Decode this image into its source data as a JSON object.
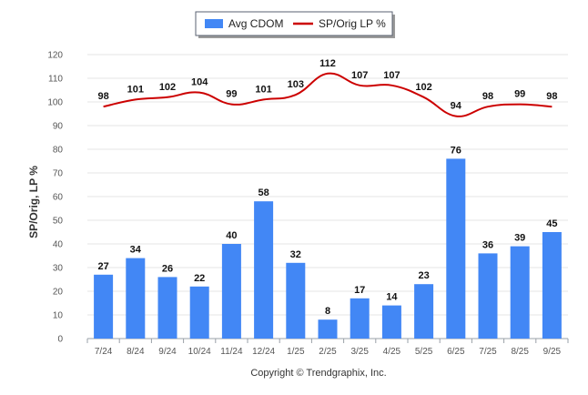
{
  "chart_data": {
    "type": "bar",
    "categories": [
      "7/24",
      "8/24",
      "9/24",
      "10/24",
      "11/24",
      "12/24",
      "1/25",
      "2/25",
      "3/25",
      "4/25",
      "5/25",
      "6/25",
      "7/25",
      "8/25",
      "9/25"
    ],
    "series": [
      {
        "name": "Avg CDOM",
        "type": "bar",
        "color": "#4287f5",
        "values": [
          27,
          34,
          26,
          22,
          40,
          58,
          32,
          8,
          17,
          14,
          23,
          76,
          36,
          39,
          45
        ],
        "labels": [
          "27",
          "34",
          "26",
          "22",
          "40",
          "58",
          "32",
          "8",
          "17",
          "14",
          "23",
          "76",
          "36",
          "39",
          "45"
        ]
      },
      {
        "name": "SP/Orig LP %",
        "type": "line",
        "color": "#cc0000",
        "values": [
          98,
          101,
          102,
          104,
          99,
          101,
          103,
          112,
          107,
          107,
          102,
          94,
          98,
          99,
          98
        ],
        "labels": [
          "98",
          "101",
          "102",
          "104",
          "99",
          "101",
          "103",
          "112",
          "107",
          "107",
          "102",
          "94",
          "98",
          "99",
          "98"
        ]
      }
    ],
    "ylabel": "SP/Orig, LP %",
    "xlabel": "",
    "ylim": [
      0,
      120
    ],
    "yticks": [
      "0",
      "10",
      "20",
      "30",
      "40",
      "50",
      "60",
      "70",
      "80",
      "90",
      "100",
      "110",
      "120"
    ],
    "grid": true,
    "legend_position": "top-center",
    "credit": "Copyright © Trendgraphix, Inc."
  }
}
